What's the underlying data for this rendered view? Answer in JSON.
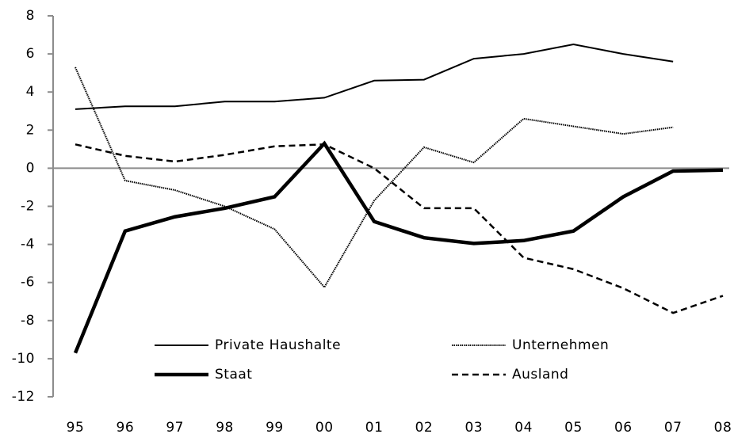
{
  "chart_data": {
    "type": "line",
    "categories": [
      "95",
      "96",
      "97",
      "98",
      "99",
      "00",
      "01",
      "02",
      "03",
      "04",
      "05",
      "06",
      "07",
      "08"
    ],
    "series": [
      {
        "name": "Private Haushalte",
        "color": "#000000",
        "width": 2,
        "dash": "none",
        "values": [
          3.1,
          3.25,
          3.25,
          3.5,
          3.5,
          3.7,
          4.6,
          4.65,
          5.75,
          6.0,
          6.5,
          6.0,
          5.6,
          null
        ]
      },
      {
        "name": "Unternehmen",
        "color": "#000000",
        "width": 2,
        "dash": "1.5 1",
        "values": [
          5.3,
          -0.65,
          -1.15,
          -2.0,
          -3.2,
          -6.25,
          -1.7,
          1.1,
          0.3,
          2.6,
          2.2,
          1.8,
          2.15,
          null
        ]
      },
      {
        "name": "Staat",
        "color": "#000000",
        "width": 4.5,
        "dash": "none",
        "values": [
          -9.7,
          -3.3,
          -2.55,
          -2.1,
          -1.5,
          1.3,
          -2.8,
          -3.65,
          -3.95,
          -3.8,
          -3.3,
          -1.5,
          -0.15,
          -0.1
        ]
      },
      {
        "name": "Ausland",
        "color": "#000000",
        "width": 2.5,
        "dash": "8 5",
        "values": [
          1.25,
          0.65,
          0.35,
          0.7,
          1.15,
          1.25,
          0.0,
          -2.1,
          -2.1,
          -4.7,
          -5.3,
          -6.3,
          -7.6,
          -6.7
        ]
      }
    ],
    "ylim": [
      -12,
      8
    ],
    "yticks": [
      -12,
      -10,
      -8,
      -6,
      -4,
      -2,
      0,
      2,
      4,
      6,
      8
    ]
  }
}
